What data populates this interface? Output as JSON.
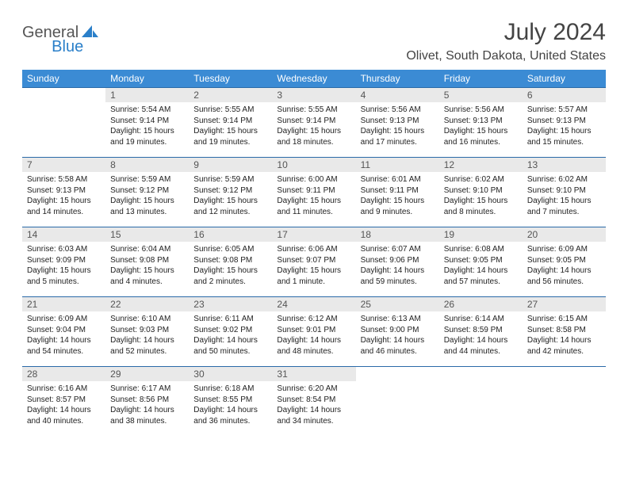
{
  "logo": {
    "part1": "General",
    "part2": "Blue"
  },
  "title": "July 2024",
  "location": "Olivet, South Dakota, United States",
  "colors": {
    "header_bg": "#3b8bd4",
    "header_text": "#ffffff",
    "daynum_bg": "#e9e9e9",
    "row_border": "#2a6aa8",
    "logo_gray": "#555555",
    "logo_blue": "#2a7fc9"
  },
  "day_headers": [
    "Sunday",
    "Monday",
    "Tuesday",
    "Wednesday",
    "Thursday",
    "Friday",
    "Saturday"
  ],
  "weeks": [
    [
      null,
      {
        "n": "1",
        "sr": "Sunrise: 5:54 AM",
        "ss": "Sunset: 9:14 PM",
        "d1": "Daylight: 15 hours",
        "d2": "and 19 minutes."
      },
      {
        "n": "2",
        "sr": "Sunrise: 5:55 AM",
        "ss": "Sunset: 9:14 PM",
        "d1": "Daylight: 15 hours",
        "d2": "and 19 minutes."
      },
      {
        "n": "3",
        "sr": "Sunrise: 5:55 AM",
        "ss": "Sunset: 9:14 PM",
        "d1": "Daylight: 15 hours",
        "d2": "and 18 minutes."
      },
      {
        "n": "4",
        "sr": "Sunrise: 5:56 AM",
        "ss": "Sunset: 9:13 PM",
        "d1": "Daylight: 15 hours",
        "d2": "and 17 minutes."
      },
      {
        "n": "5",
        "sr": "Sunrise: 5:56 AM",
        "ss": "Sunset: 9:13 PM",
        "d1": "Daylight: 15 hours",
        "d2": "and 16 minutes."
      },
      {
        "n": "6",
        "sr": "Sunrise: 5:57 AM",
        "ss": "Sunset: 9:13 PM",
        "d1": "Daylight: 15 hours",
        "d2": "and 15 minutes."
      }
    ],
    [
      {
        "n": "7",
        "sr": "Sunrise: 5:58 AM",
        "ss": "Sunset: 9:13 PM",
        "d1": "Daylight: 15 hours",
        "d2": "and 14 minutes."
      },
      {
        "n": "8",
        "sr": "Sunrise: 5:59 AM",
        "ss": "Sunset: 9:12 PM",
        "d1": "Daylight: 15 hours",
        "d2": "and 13 minutes."
      },
      {
        "n": "9",
        "sr": "Sunrise: 5:59 AM",
        "ss": "Sunset: 9:12 PM",
        "d1": "Daylight: 15 hours",
        "d2": "and 12 minutes."
      },
      {
        "n": "10",
        "sr": "Sunrise: 6:00 AM",
        "ss": "Sunset: 9:11 PM",
        "d1": "Daylight: 15 hours",
        "d2": "and 11 minutes."
      },
      {
        "n": "11",
        "sr": "Sunrise: 6:01 AM",
        "ss": "Sunset: 9:11 PM",
        "d1": "Daylight: 15 hours",
        "d2": "and 9 minutes."
      },
      {
        "n": "12",
        "sr": "Sunrise: 6:02 AM",
        "ss": "Sunset: 9:10 PM",
        "d1": "Daylight: 15 hours",
        "d2": "and 8 minutes."
      },
      {
        "n": "13",
        "sr": "Sunrise: 6:02 AM",
        "ss": "Sunset: 9:10 PM",
        "d1": "Daylight: 15 hours",
        "d2": "and 7 minutes."
      }
    ],
    [
      {
        "n": "14",
        "sr": "Sunrise: 6:03 AM",
        "ss": "Sunset: 9:09 PM",
        "d1": "Daylight: 15 hours",
        "d2": "and 5 minutes."
      },
      {
        "n": "15",
        "sr": "Sunrise: 6:04 AM",
        "ss": "Sunset: 9:08 PM",
        "d1": "Daylight: 15 hours",
        "d2": "and 4 minutes."
      },
      {
        "n": "16",
        "sr": "Sunrise: 6:05 AM",
        "ss": "Sunset: 9:08 PM",
        "d1": "Daylight: 15 hours",
        "d2": "and 2 minutes."
      },
      {
        "n": "17",
        "sr": "Sunrise: 6:06 AM",
        "ss": "Sunset: 9:07 PM",
        "d1": "Daylight: 15 hours",
        "d2": "and 1 minute."
      },
      {
        "n": "18",
        "sr": "Sunrise: 6:07 AM",
        "ss": "Sunset: 9:06 PM",
        "d1": "Daylight: 14 hours",
        "d2": "and 59 minutes."
      },
      {
        "n": "19",
        "sr": "Sunrise: 6:08 AM",
        "ss": "Sunset: 9:05 PM",
        "d1": "Daylight: 14 hours",
        "d2": "and 57 minutes."
      },
      {
        "n": "20",
        "sr": "Sunrise: 6:09 AM",
        "ss": "Sunset: 9:05 PM",
        "d1": "Daylight: 14 hours",
        "d2": "and 56 minutes."
      }
    ],
    [
      {
        "n": "21",
        "sr": "Sunrise: 6:09 AM",
        "ss": "Sunset: 9:04 PM",
        "d1": "Daylight: 14 hours",
        "d2": "and 54 minutes."
      },
      {
        "n": "22",
        "sr": "Sunrise: 6:10 AM",
        "ss": "Sunset: 9:03 PM",
        "d1": "Daylight: 14 hours",
        "d2": "and 52 minutes."
      },
      {
        "n": "23",
        "sr": "Sunrise: 6:11 AM",
        "ss": "Sunset: 9:02 PM",
        "d1": "Daylight: 14 hours",
        "d2": "and 50 minutes."
      },
      {
        "n": "24",
        "sr": "Sunrise: 6:12 AM",
        "ss": "Sunset: 9:01 PM",
        "d1": "Daylight: 14 hours",
        "d2": "and 48 minutes."
      },
      {
        "n": "25",
        "sr": "Sunrise: 6:13 AM",
        "ss": "Sunset: 9:00 PM",
        "d1": "Daylight: 14 hours",
        "d2": "and 46 minutes."
      },
      {
        "n": "26",
        "sr": "Sunrise: 6:14 AM",
        "ss": "Sunset: 8:59 PM",
        "d1": "Daylight: 14 hours",
        "d2": "and 44 minutes."
      },
      {
        "n": "27",
        "sr": "Sunrise: 6:15 AM",
        "ss": "Sunset: 8:58 PM",
        "d1": "Daylight: 14 hours",
        "d2": "and 42 minutes."
      }
    ],
    [
      {
        "n": "28",
        "sr": "Sunrise: 6:16 AM",
        "ss": "Sunset: 8:57 PM",
        "d1": "Daylight: 14 hours",
        "d2": "and 40 minutes."
      },
      {
        "n": "29",
        "sr": "Sunrise: 6:17 AM",
        "ss": "Sunset: 8:56 PM",
        "d1": "Daylight: 14 hours",
        "d2": "and 38 minutes."
      },
      {
        "n": "30",
        "sr": "Sunrise: 6:18 AM",
        "ss": "Sunset: 8:55 PM",
        "d1": "Daylight: 14 hours",
        "d2": "and 36 minutes."
      },
      {
        "n": "31",
        "sr": "Sunrise: 6:20 AM",
        "ss": "Sunset: 8:54 PM",
        "d1": "Daylight: 14 hours",
        "d2": "and 34 minutes."
      },
      null,
      null,
      null
    ]
  ]
}
